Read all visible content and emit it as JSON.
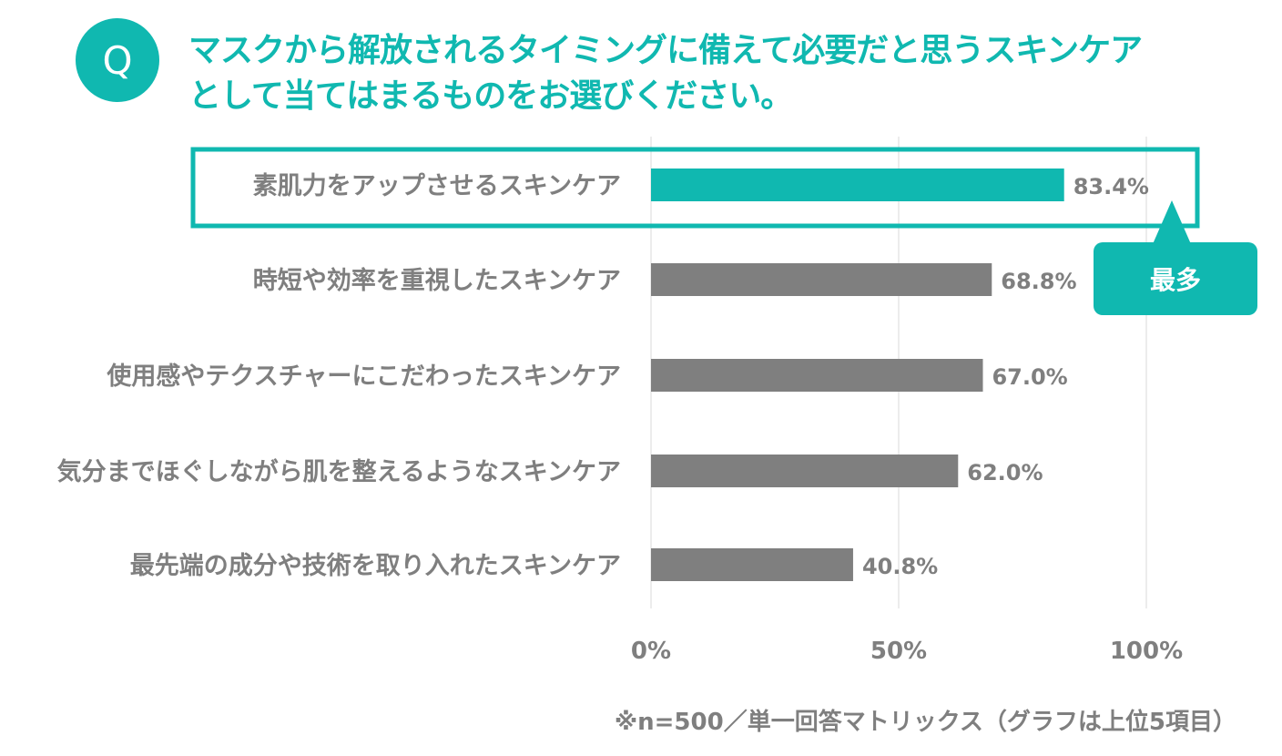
{
  "question": {
    "badge": "Q",
    "line1": "マスクから解放されるタイミングに備えて必要だと思うスキンケア",
    "line2": "として当てはまるものをお選びください。"
  },
  "callout": {
    "label": "最多"
  },
  "footnote": "※n=500／単一回答マトリックス（グラフは上位5項目）",
  "colors": {
    "accent": "#10b8b0",
    "bar": "#7f7f7f",
    "label": "#7f7f7f",
    "grid": "#d9d9d9"
  },
  "chart_data": {
    "type": "bar",
    "orientation": "horizontal",
    "categories": [
      "素肌力をアップさせるスキンケア",
      "時短や効率を重視したスキンケア",
      "使用感やテクスチャーにこだわったスキンケア",
      "気分までほぐしながら肌を整えるようなスキンケア",
      "最先端の成分や技術を取り入れたスキンケア"
    ],
    "values": [
      83.4,
      68.8,
      67.0,
      62.0,
      40.8
    ],
    "value_labels": [
      "83.4%",
      "68.8%",
      "67.0%",
      "62.0%",
      "40.8%"
    ],
    "highlight_index": 0,
    "xlim": [
      0,
      100
    ],
    "xticks": [
      0,
      50,
      100
    ],
    "xtick_labels": [
      "0%",
      "50%",
      "100%"
    ],
    "grid": true
  }
}
